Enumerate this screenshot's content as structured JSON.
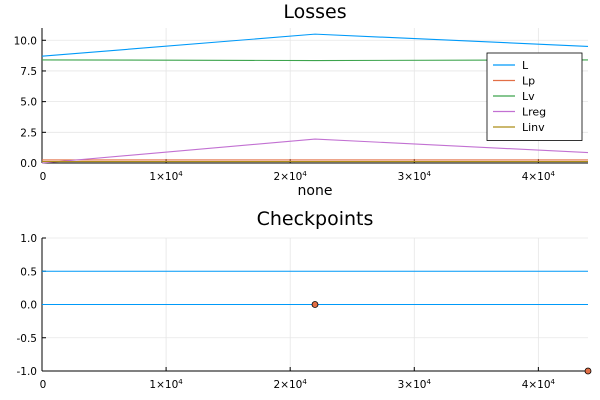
{
  "colors": {
    "L": "#009af9",
    "Lp": "#e26f46",
    "Lv": "#3da44d",
    "Lreg": "#c271d2",
    "Linv": "#ac8d18",
    "checkpoints_line": "#009af9",
    "checkpoints_point": "#e26f46"
  },
  "chart_data": [
    {
      "type": "line",
      "title": "Losses",
      "xlabel": "none",
      "ylabel": "",
      "xlim": [
        0,
        44000
      ],
      "ylim": [
        0,
        11
      ],
      "xticks": [
        0,
        10000,
        20000,
        30000,
        40000
      ],
      "xtick_labels": [
        "0",
        "1×10^4",
        "2×10^4",
        "3×10^4",
        "4×10^4"
      ],
      "yticks": [
        0,
        2.5,
        5,
        7.5,
        10
      ],
      "ytick_labels": [
        "0.0",
        "2.5",
        "5.0",
        "7.5",
        "10.0"
      ],
      "grid": true,
      "legend": "right",
      "series": [
        {
          "name": "L",
          "x": [
            0,
            22000,
            44000
          ],
          "values": [
            8.7,
            10.5,
            9.5
          ]
        },
        {
          "name": "Lp",
          "x": [
            0,
            22000,
            44000
          ],
          "values": [
            0.25,
            0.25,
            0.25
          ]
        },
        {
          "name": "Lv",
          "x": [
            0,
            22000,
            44000
          ],
          "values": [
            8.4,
            8.35,
            8.4
          ]
        },
        {
          "name": "Lreg",
          "x": [
            0,
            22000,
            44000
          ],
          "values": [
            0.0,
            1.95,
            0.85
          ]
        },
        {
          "name": "Linv",
          "x": [
            0,
            22000,
            44000
          ],
          "values": [
            0.12,
            0.12,
            0.12
          ]
        }
      ]
    },
    {
      "type": "line",
      "title": "Checkpoints",
      "xlabel": "",
      "ylabel": "",
      "xlim": [
        0,
        44000
      ],
      "ylim": [
        -1,
        1
      ],
      "xticks": [
        0,
        10000,
        20000,
        30000,
        40000
      ],
      "xtick_labels": [
        "0",
        "1×10^4",
        "2×10^4",
        "3×10^4",
        "4×10^4"
      ],
      "yticks": [
        -1,
        -0.5,
        0,
        0.5,
        1
      ],
      "ytick_labels": [
        "-1.0",
        "-0.5",
        "0.0",
        "0.5",
        "1.0"
      ],
      "grid": true,
      "legend": "none",
      "hlines": [
        0,
        0.5
      ],
      "points": [
        {
          "x": 22000,
          "y": 0
        },
        {
          "x": 44000,
          "y": -1
        }
      ]
    }
  ]
}
